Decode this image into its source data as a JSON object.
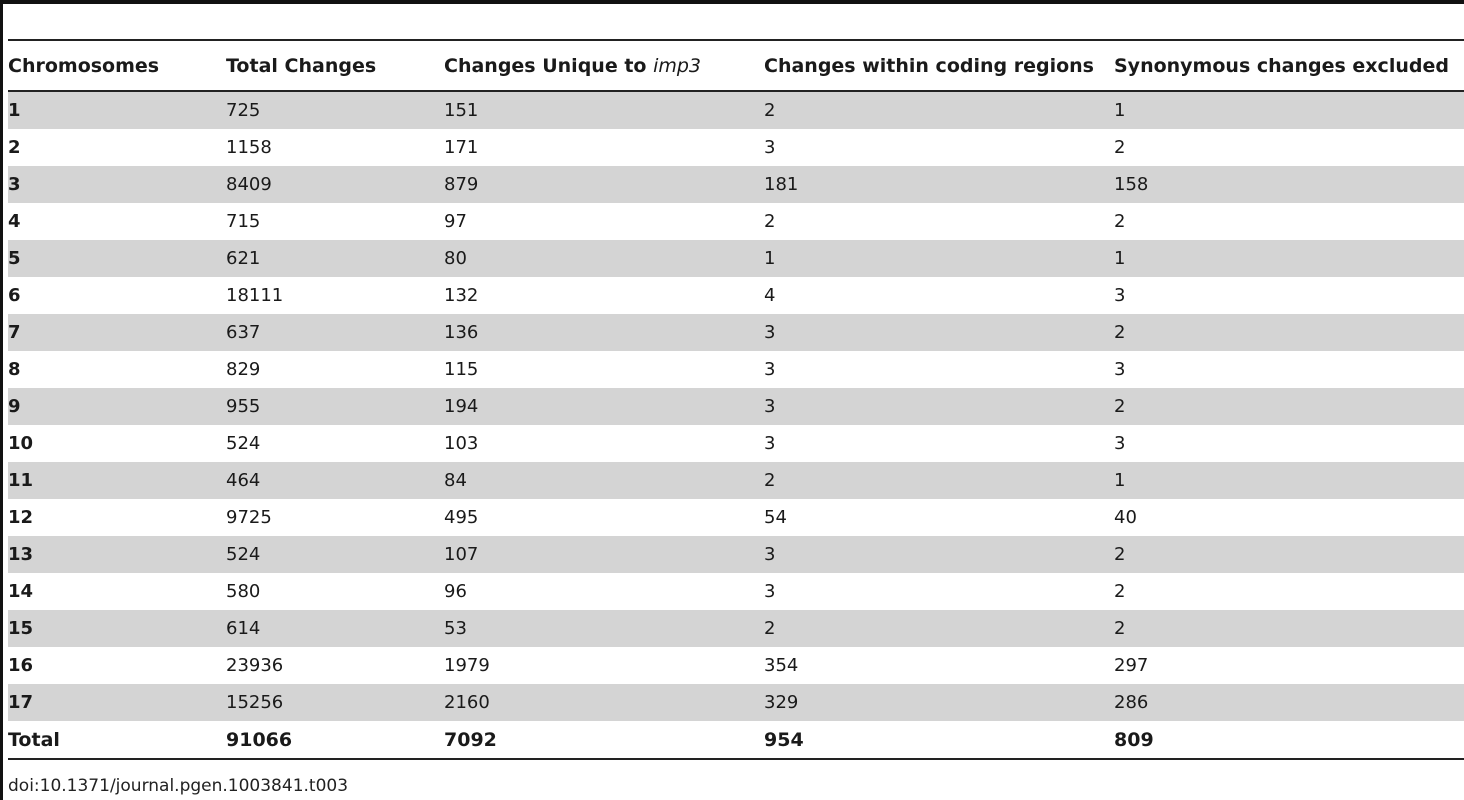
{
  "table": {
    "headers": {
      "col1": "Chromosomes",
      "col2": "Total Changes",
      "col3_prefix": "Changes Unique to ",
      "col3_italic": "imp3",
      "col4": "Changes within coding regions",
      "col5": "Synonymous changes excluded"
    },
    "rows": [
      [
        "1",
        "725",
        "151",
        "2",
        "1"
      ],
      [
        "2",
        "1158",
        "171",
        "3",
        "2"
      ],
      [
        "3",
        "8409",
        "879",
        "181",
        "158"
      ],
      [
        "4",
        "715",
        "97",
        "2",
        "2"
      ],
      [
        "5",
        "621",
        "80",
        "1",
        "1"
      ],
      [
        "6",
        "18111",
        "132",
        "4",
        "3"
      ],
      [
        "7",
        "637",
        "136",
        "3",
        "2"
      ],
      [
        "8",
        "829",
        "115",
        "3",
        "3"
      ],
      [
        "9",
        "955",
        "194",
        "3",
        "2"
      ],
      [
        "10",
        "524",
        "103",
        "3",
        "3"
      ],
      [
        "11",
        "464",
        "84",
        "2",
        "1"
      ],
      [
        "12",
        "9725",
        "495",
        "54",
        "40"
      ],
      [
        "13",
        "524",
        "107",
        "3",
        "2"
      ],
      [
        "14",
        "580",
        "96",
        "3",
        "2"
      ],
      [
        "15",
        "614",
        "53",
        "2",
        "2"
      ],
      [
        "16",
        "23936",
        "1979",
        "354",
        "297"
      ],
      [
        "17",
        "15256",
        "2160",
        "329",
        "286"
      ]
    ],
    "total": [
      "Total",
      "91066",
      "7092",
      "954",
      "809"
    ]
  },
  "footer": {
    "doi": "doi:10.1371/journal.pgen.1003841.t003"
  },
  "colors": {
    "row_shade": "#d4d4d4",
    "rule": "#222222"
  }
}
